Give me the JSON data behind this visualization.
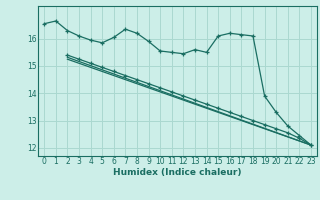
{
  "xlabel": "Humidex (Indice chaleur)",
  "ylabel": "",
  "background_color": "#cceee8",
  "grid_color": "#aad8d0",
  "line_color": "#1a6e62",
  "xlim": [
    -0.5,
    23.5
  ],
  "ylim": [
    11.7,
    17.2
  ],
  "yticks": [
    12,
    13,
    14,
    15,
    16
  ],
  "xticks": [
    0,
    1,
    2,
    3,
    4,
    5,
    6,
    7,
    8,
    9,
    10,
    11,
    12,
    13,
    14,
    15,
    16,
    17,
    18,
    19,
    20,
    21,
    22,
    23
  ],
  "line1_x": [
    0,
    1,
    2,
    3,
    4,
    5,
    6,
    7,
    8,
    9,
    10,
    11,
    12,
    13,
    14,
    15,
    16,
    17,
    18,
    19,
    20,
    21,
    22,
    23
  ],
  "line1_y": [
    16.55,
    16.65,
    16.3,
    16.1,
    15.95,
    15.85,
    16.05,
    16.35,
    16.2,
    15.9,
    15.55,
    15.5,
    15.45,
    15.6,
    15.5,
    16.1,
    16.2,
    16.15,
    16.1,
    13.9,
    13.3,
    12.8,
    12.45,
    12.1
  ],
  "line2_x": [
    2,
    3,
    4,
    5,
    6,
    7,
    8,
    9,
    10,
    11,
    12,
    13,
    14,
    15,
    16,
    17,
    18,
    19,
    20,
    21,
    22,
    23
  ],
  "line2_y": [
    15.4,
    15.25,
    15.1,
    14.95,
    14.8,
    14.65,
    14.5,
    14.35,
    14.2,
    14.05,
    13.9,
    13.75,
    13.6,
    13.45,
    13.3,
    13.15,
    13.0,
    12.85,
    12.7,
    12.55,
    12.35,
    12.1
  ],
  "line3_x": [
    2,
    23
  ],
  "line3_y": [
    15.32,
    12.1
  ],
  "line4_x": [
    2,
    23
  ],
  "line4_y": [
    15.25,
    12.1
  ]
}
